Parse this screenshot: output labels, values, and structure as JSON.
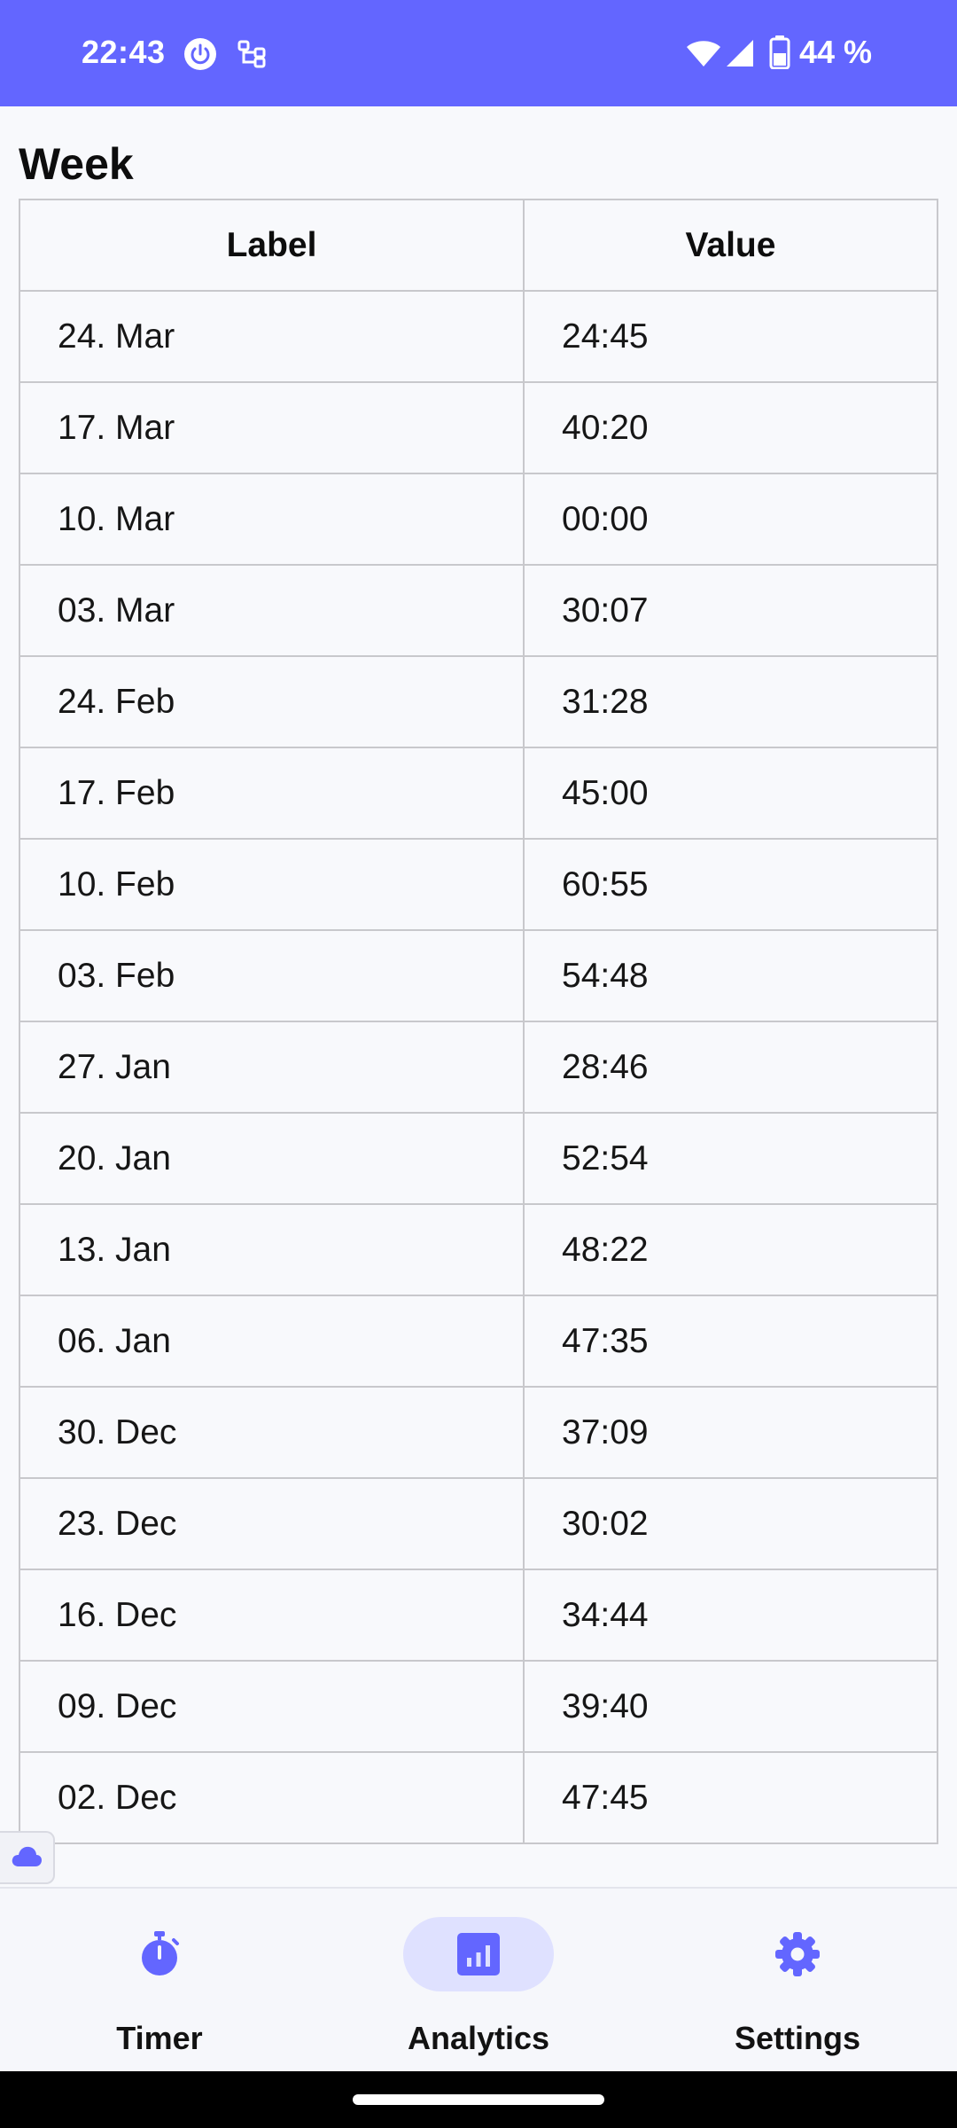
{
  "status_bar": {
    "time": "22:43",
    "battery_text": "44 %",
    "icons": [
      "power-icon",
      "vpn-network-icon",
      "wifi-icon",
      "signal-icon",
      "battery-icon"
    ],
    "background_color": "#6366ff"
  },
  "section": {
    "title": "Week"
  },
  "table": {
    "headers": [
      "Label",
      "Value"
    ],
    "rows": [
      {
        "label": "24. Mar",
        "value": "24:45"
      },
      {
        "label": "17. Mar",
        "value": "40:20"
      },
      {
        "label": "10. Mar",
        "value": "00:00"
      },
      {
        "label": "03. Mar",
        "value": "30:07"
      },
      {
        "label": "24. Feb",
        "value": "31:28"
      },
      {
        "label": "17. Feb",
        "value": "45:00"
      },
      {
        "label": "10. Feb",
        "value": "60:55"
      },
      {
        "label": "03. Feb",
        "value": "54:48"
      },
      {
        "label": "27. Jan",
        "value": "28:46"
      },
      {
        "label": "20. Jan",
        "value": "52:54"
      },
      {
        "label": "13. Jan",
        "value": "48:22"
      },
      {
        "label": "06. Jan",
        "value": "47:35"
      },
      {
        "label": "30. Dec",
        "value": "37:09"
      },
      {
        "label": "23. Dec",
        "value": "30:02"
      },
      {
        "label": "16. Dec",
        "value": "34:44"
      },
      {
        "label": "09. Dec",
        "value": "39:40"
      },
      {
        "label": "02. Dec",
        "value": "47:45"
      }
    ]
  },
  "nav": {
    "items": [
      {
        "label": "Timer",
        "icon": "stopwatch-icon",
        "active": false
      },
      {
        "label": "Analytics",
        "icon": "analytics-icon",
        "active": true
      },
      {
        "label": "Settings",
        "icon": "gear-icon",
        "active": false
      }
    ],
    "accent_color": "#6366ff",
    "active_pill_color": "#dfe1ff"
  },
  "cloud_badge": {
    "icon": "cloud-icon"
  }
}
